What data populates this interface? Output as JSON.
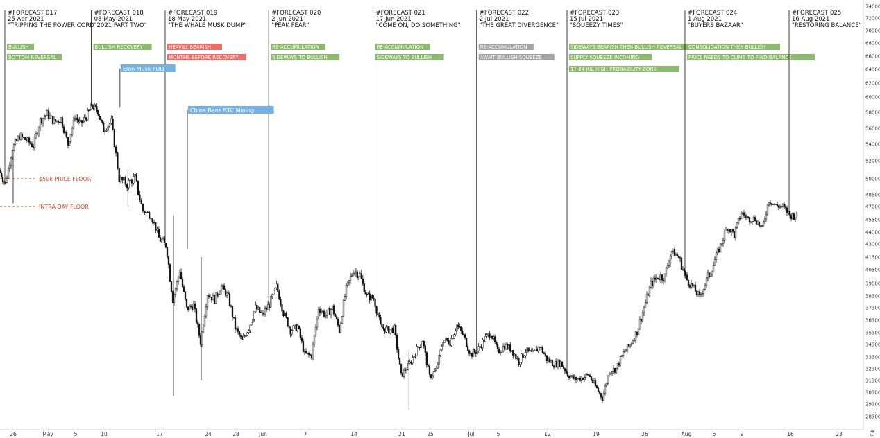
{
  "colors": {
    "green": "#8db86f",
    "red": "#ef6b63",
    "gray": "#a3a3a3",
    "blue": "#74b2e6",
    "floor": "#e0441f",
    "candle_up": "#ffffff",
    "candle_down": "#111111"
  },
  "forecasts": [
    {
      "id": "#FORECAST 017",
      "date": "25 Apr 2021",
      "name": "\"TRIPPING THE POWER CORD\"",
      "line_at": "2021-04-25",
      "tags": [
        {
          "text": "BULLISH",
          "color": "green"
        },
        {
          "text": "BOTTOM REVERSAL",
          "color": "green"
        }
      ]
    },
    {
      "id": "#FORECAST 018",
      "date": "08 May 2021",
      "name": "\"2021 PART TWO\"",
      "line_at": "2021-05-08",
      "tags": [
        {
          "text": "BULLISH RECOVERY",
          "color": "green"
        }
      ]
    },
    {
      "id": "#FORECAST 019",
      "date": "18 May 2021",
      "name": "\"THE WHALE MUSK DUMP\"",
      "line_at": "2021-05-18",
      "tags": [
        {
          "text": "HEAVILY BEARISH",
          "color": "red"
        },
        {
          "text": "MONTHS BEFORE RECOVERY",
          "color": "red"
        }
      ]
    },
    {
      "id": "#FORECAST 020",
      "date": "2 Jun 2021",
      "name": "\"PEAK FEAR\"",
      "line_at": "2021-06-02",
      "tags": [
        {
          "text": "RE-ACCUMULATION",
          "color": "green"
        },
        {
          "text": "SIDEWAYS TO BULLISH",
          "color": "green"
        }
      ]
    },
    {
      "id": "#FORECAST 021",
      "date": "17 Jun 2021",
      "name": "\"COME ON, DO SOMETHING\"",
      "line_at": "2021-06-17",
      "tags": [
        {
          "text": "RE-ACCUMULATION",
          "color": "green"
        },
        {
          "text": "SIDEWAYS TO BULLISH",
          "color": "green"
        }
      ]
    },
    {
      "id": "#FORECAST 022",
      "date": "2 Jul 2021",
      "name": "\"THE GREAT DIVERGENCE\"",
      "line_at": "2021-07-02",
      "tags": [
        {
          "text": "RE-ACCUMULATION",
          "color": "gray"
        },
        {
          "text": "AWAIT BULLISH SQUEEZE",
          "color": "gray"
        }
      ]
    },
    {
      "id": "#FORECAST 023",
      "date": "15 Jul 2021",
      "name": "\"SQUEEZY TIMES\"",
      "line_at": "2021-07-15",
      "tags": [
        {
          "text": "SIDEWAYS BEARISH THEN BULLISH REVERSAL",
          "color": "green"
        },
        {
          "text": "SUPPLY SQUEEZE INCOMING",
          "color": "green"
        },
        {
          "text": "17-24 JUL HIGH PROBABILITY ZONE",
          "color": "green"
        }
      ]
    },
    {
      "id": "#FORECAST 024",
      "date": "1 Aug 2021",
      "name": "\"BUYERS BAZAAR\"",
      "line_at": "2021-08-01",
      "tags": [
        {
          "text": "CONSOLIDATION THEN BULLISH",
          "color": "green"
        },
        {
          "text": "PRICE NEEDS TO CLIMB TO FIND BALANCE",
          "color": "green"
        }
      ]
    },
    {
      "id": "#FORECAST 025",
      "date": "16 Aug 2021",
      "name": "\"RESTORING BALANCE\"",
      "line_at": "2021-08-16",
      "tags": []
    }
  ],
  "events": [
    {
      "text": "Elon Musk FUD",
      "at": "2021-05-12"
    },
    {
      "text": "China Bans BTC Mining",
      "at": "2021-05-21"
    }
  ],
  "floors": [
    {
      "text": "$50k PRICE FLOOR",
      "price": 50000
    },
    {
      "text": "INTRA-DAY FLOOR",
      "price": 47000
    }
  ],
  "chart_data": {
    "type": "candlestick",
    "x_axis": {
      "start": "2021-04-24",
      "end": "2021-08-25",
      "tick_labels": [
        {
          "label": "26",
          "date": "2021-04-26"
        },
        {
          "label": "May",
          "date": "2021-05-01"
        },
        {
          "label": "5",
          "date": "2021-05-05"
        },
        {
          "label": "10",
          "date": "2021-05-10"
        },
        {
          "label": "17",
          "date": "2021-05-17"
        },
        {
          "label": "24",
          "date": "2021-05-24"
        },
        {
          "label": "28",
          "date": "2021-05-28"
        },
        {
          "label": "Jun",
          "date": "2021-06-01"
        },
        {
          "label": "7",
          "date": "2021-06-07"
        },
        {
          "label": "14",
          "date": "2021-06-14"
        },
        {
          "label": "21",
          "date": "2021-06-21"
        },
        {
          "label": "25",
          "date": "2021-06-25"
        },
        {
          "label": "Jul",
          "date": "2021-07-01"
        },
        {
          "label": "5",
          "date": "2021-07-05"
        },
        {
          "label": "12",
          "date": "2021-07-12"
        },
        {
          "label": "19",
          "date": "2021-07-19"
        },
        {
          "label": "26",
          "date": "2021-07-26"
        },
        {
          "label": "Aug",
          "date": "2021-08-01"
        },
        {
          "label": "5",
          "date": "2021-08-05"
        },
        {
          "label": "9",
          "date": "2021-08-09"
        },
        {
          "label": "16",
          "date": "2021-08-16"
        },
        {
          "label": "23",
          "date": "2021-08-23"
        }
      ]
    },
    "y_axis": {
      "range": [
        28300,
        74500
      ],
      "ticks": [
        74000,
        72000,
        70000,
        68000,
        66000,
        64000,
        62000,
        60000,
        58000,
        56000,
        54000,
        52000,
        50000,
        48500,
        47000,
        45500,
        44000,
        43000,
        41500,
        40500,
        39500,
        38300,
        37300,
        36300,
        35300,
        34300,
        33300,
        32300,
        31300,
        30300,
        29300,
        28300
      ],
      "tick_labels": [
        "74000",
        "72000",
        "70000",
        "68000",
        "66000",
        "64000",
        "62000",
        "60000",
        "58000",
        "56000",
        "54000",
        "52000",
        "50000",
        "48500",
        "47000",
        "45500",
        "44000",
        "43000",
        "41500",
        "40500",
        "39500",
        "38300",
        "37300",
        "36300",
        "35300",
        "34300",
        "33300",
        "32300",
        "31300",
        "30300",
        "29300",
        "28300"
      ]
    },
    "close_path": [
      [
        "2021-04-24",
        51000
      ],
      [
        "2021-04-25",
        49500
      ],
      [
        "2021-04-26",
        53500
      ],
      [
        "2021-04-27",
        55000
      ],
      [
        "2021-04-28",
        54500
      ],
      [
        "2021-04-29",
        53800
      ],
      [
        "2021-04-30",
        57000
      ],
      [
        "2021-05-01",
        57800
      ],
      [
        "2021-05-02",
        56800
      ],
      [
        "2021-05-03",
        57200
      ],
      [
        "2021-05-04",
        54000
      ],
      [
        "2021-05-05",
        57500
      ],
      [
        "2021-05-06",
        56500
      ],
      [
        "2021-05-07",
        57500
      ],
      [
        "2021-05-08",
        58800
      ],
      [
        "2021-05-09",
        58200
      ],
      [
        "2021-05-10",
        55800
      ],
      [
        "2021-05-11",
        56800
      ],
      [
        "2021-05-12",
        50000
      ],
      [
        "2021-05-13",
        49500
      ],
      [
        "2021-05-14",
        50200
      ],
      [
        "2021-05-15",
        46500
      ],
      [
        "2021-05-16",
        46000
      ],
      [
        "2021-05-17",
        43500
      ],
      [
        "2021-05-18",
        42800
      ],
      [
        "2021-05-19",
        38000
      ],
      [
        "2021-05-20",
        40500
      ],
      [
        "2021-05-21",
        37200
      ],
      [
        "2021-05-22",
        37500
      ],
      [
        "2021-05-23",
        34500
      ],
      [
        "2021-05-24",
        38500
      ],
      [
        "2021-05-25",
        38000
      ],
      [
        "2021-05-26",
        39200
      ],
      [
        "2021-05-27",
        38200
      ],
      [
        "2021-05-28",
        35700
      ],
      [
        "2021-05-29",
        34600
      ],
      [
        "2021-05-30",
        35700
      ],
      [
        "2021-05-31",
        37300
      ],
      [
        "2021-06-01",
        36700
      ],
      [
        "2021-06-02",
        37600
      ],
      [
        "2021-06-03",
        39200
      ],
      [
        "2021-06-04",
        36900
      ],
      [
        "2021-06-05",
        35500
      ],
      [
        "2021-06-06",
        35800
      ],
      [
        "2021-06-07",
        33500
      ],
      [
        "2021-06-08",
        33400
      ],
      [
        "2021-06-09",
        37300
      ],
      [
        "2021-06-10",
        36700
      ],
      [
        "2021-06-11",
        37300
      ],
      [
        "2021-06-12",
        35500
      ],
      [
        "2021-06-13",
        39000
      ],
      [
        "2021-06-14",
        40500
      ],
      [
        "2021-06-15",
        40100
      ],
      [
        "2021-06-16",
        38300
      ],
      [
        "2021-06-17",
        38100
      ],
      [
        "2021-06-18",
        35800
      ],
      [
        "2021-06-19",
        35500
      ],
      [
        "2021-06-20",
        35600
      ],
      [
        "2021-06-21",
        31700
      ],
      [
        "2021-06-22",
        32500
      ],
      [
        "2021-06-23",
        33700
      ],
      [
        "2021-06-24",
        34700
      ],
      [
        "2021-06-25",
        31600
      ],
      [
        "2021-06-26",
        32200
      ],
      [
        "2021-06-27",
        34700
      ],
      [
        "2021-06-28",
        34500
      ],
      [
        "2021-06-29",
        35900
      ],
      [
        "2021-06-30",
        35000
      ],
      [
        "2021-07-01",
        33500
      ],
      [
        "2021-07-02",
        33800
      ],
      [
        "2021-07-03",
        34700
      ],
      [
        "2021-07-04",
        35300
      ],
      [
        "2021-07-05",
        33700
      ],
      [
        "2021-07-06",
        34200
      ],
      [
        "2021-07-07",
        33900
      ],
      [
        "2021-07-08",
        32900
      ],
      [
        "2021-07-09",
        33800
      ],
      [
        "2021-07-10",
        33500
      ],
      [
        "2021-07-11",
        34200
      ],
      [
        "2021-07-12",
        33100
      ],
      [
        "2021-07-13",
        32700
      ],
      [
        "2021-07-14",
        32800
      ],
      [
        "2021-07-15",
        31800
      ],
      [
        "2021-07-16",
        31400
      ],
      [
        "2021-07-17",
        31500
      ],
      [
        "2021-07-18",
        31800
      ],
      [
        "2021-07-19",
        30800
      ],
      [
        "2021-07-20",
        29800
      ],
      [
        "2021-07-21",
        32100
      ],
      [
        "2021-07-22",
        32300
      ],
      [
        "2021-07-23",
        33600
      ],
      [
        "2021-07-24",
        34300
      ],
      [
        "2021-07-25",
        35400
      ],
      [
        "2021-07-26",
        37300
      ],
      [
        "2021-07-27",
        39400
      ],
      [
        "2021-07-28",
        40000
      ],
      [
        "2021-07-29",
        40000
      ],
      [
        "2021-07-30",
        42200
      ],
      [
        "2021-07-31",
        41500
      ],
      [
        "2021-08-01",
        39900
      ],
      [
        "2021-08-02",
        39200
      ],
      [
        "2021-08-03",
        38200
      ],
      [
        "2021-08-04",
        39700
      ],
      [
        "2021-08-05",
        40900
      ],
      [
        "2021-08-06",
        42800
      ],
      [
        "2021-08-07",
        44600
      ],
      [
        "2021-08-08",
        43800
      ],
      [
        "2021-08-09",
        46300
      ],
      [
        "2021-08-10",
        45600
      ],
      [
        "2021-08-11",
        45600
      ],
      [
        "2021-08-12",
        44400
      ],
      [
        "2021-08-13",
        47800
      ],
      [
        "2021-08-14",
        47100
      ],
      [
        "2021-08-15",
        47000
      ],
      [
        "2021-08-16",
        46000
      ],
      [
        "2021-08-17",
        45900
      ]
    ]
  },
  "xaxis_icon": "reset-arrow-icon"
}
